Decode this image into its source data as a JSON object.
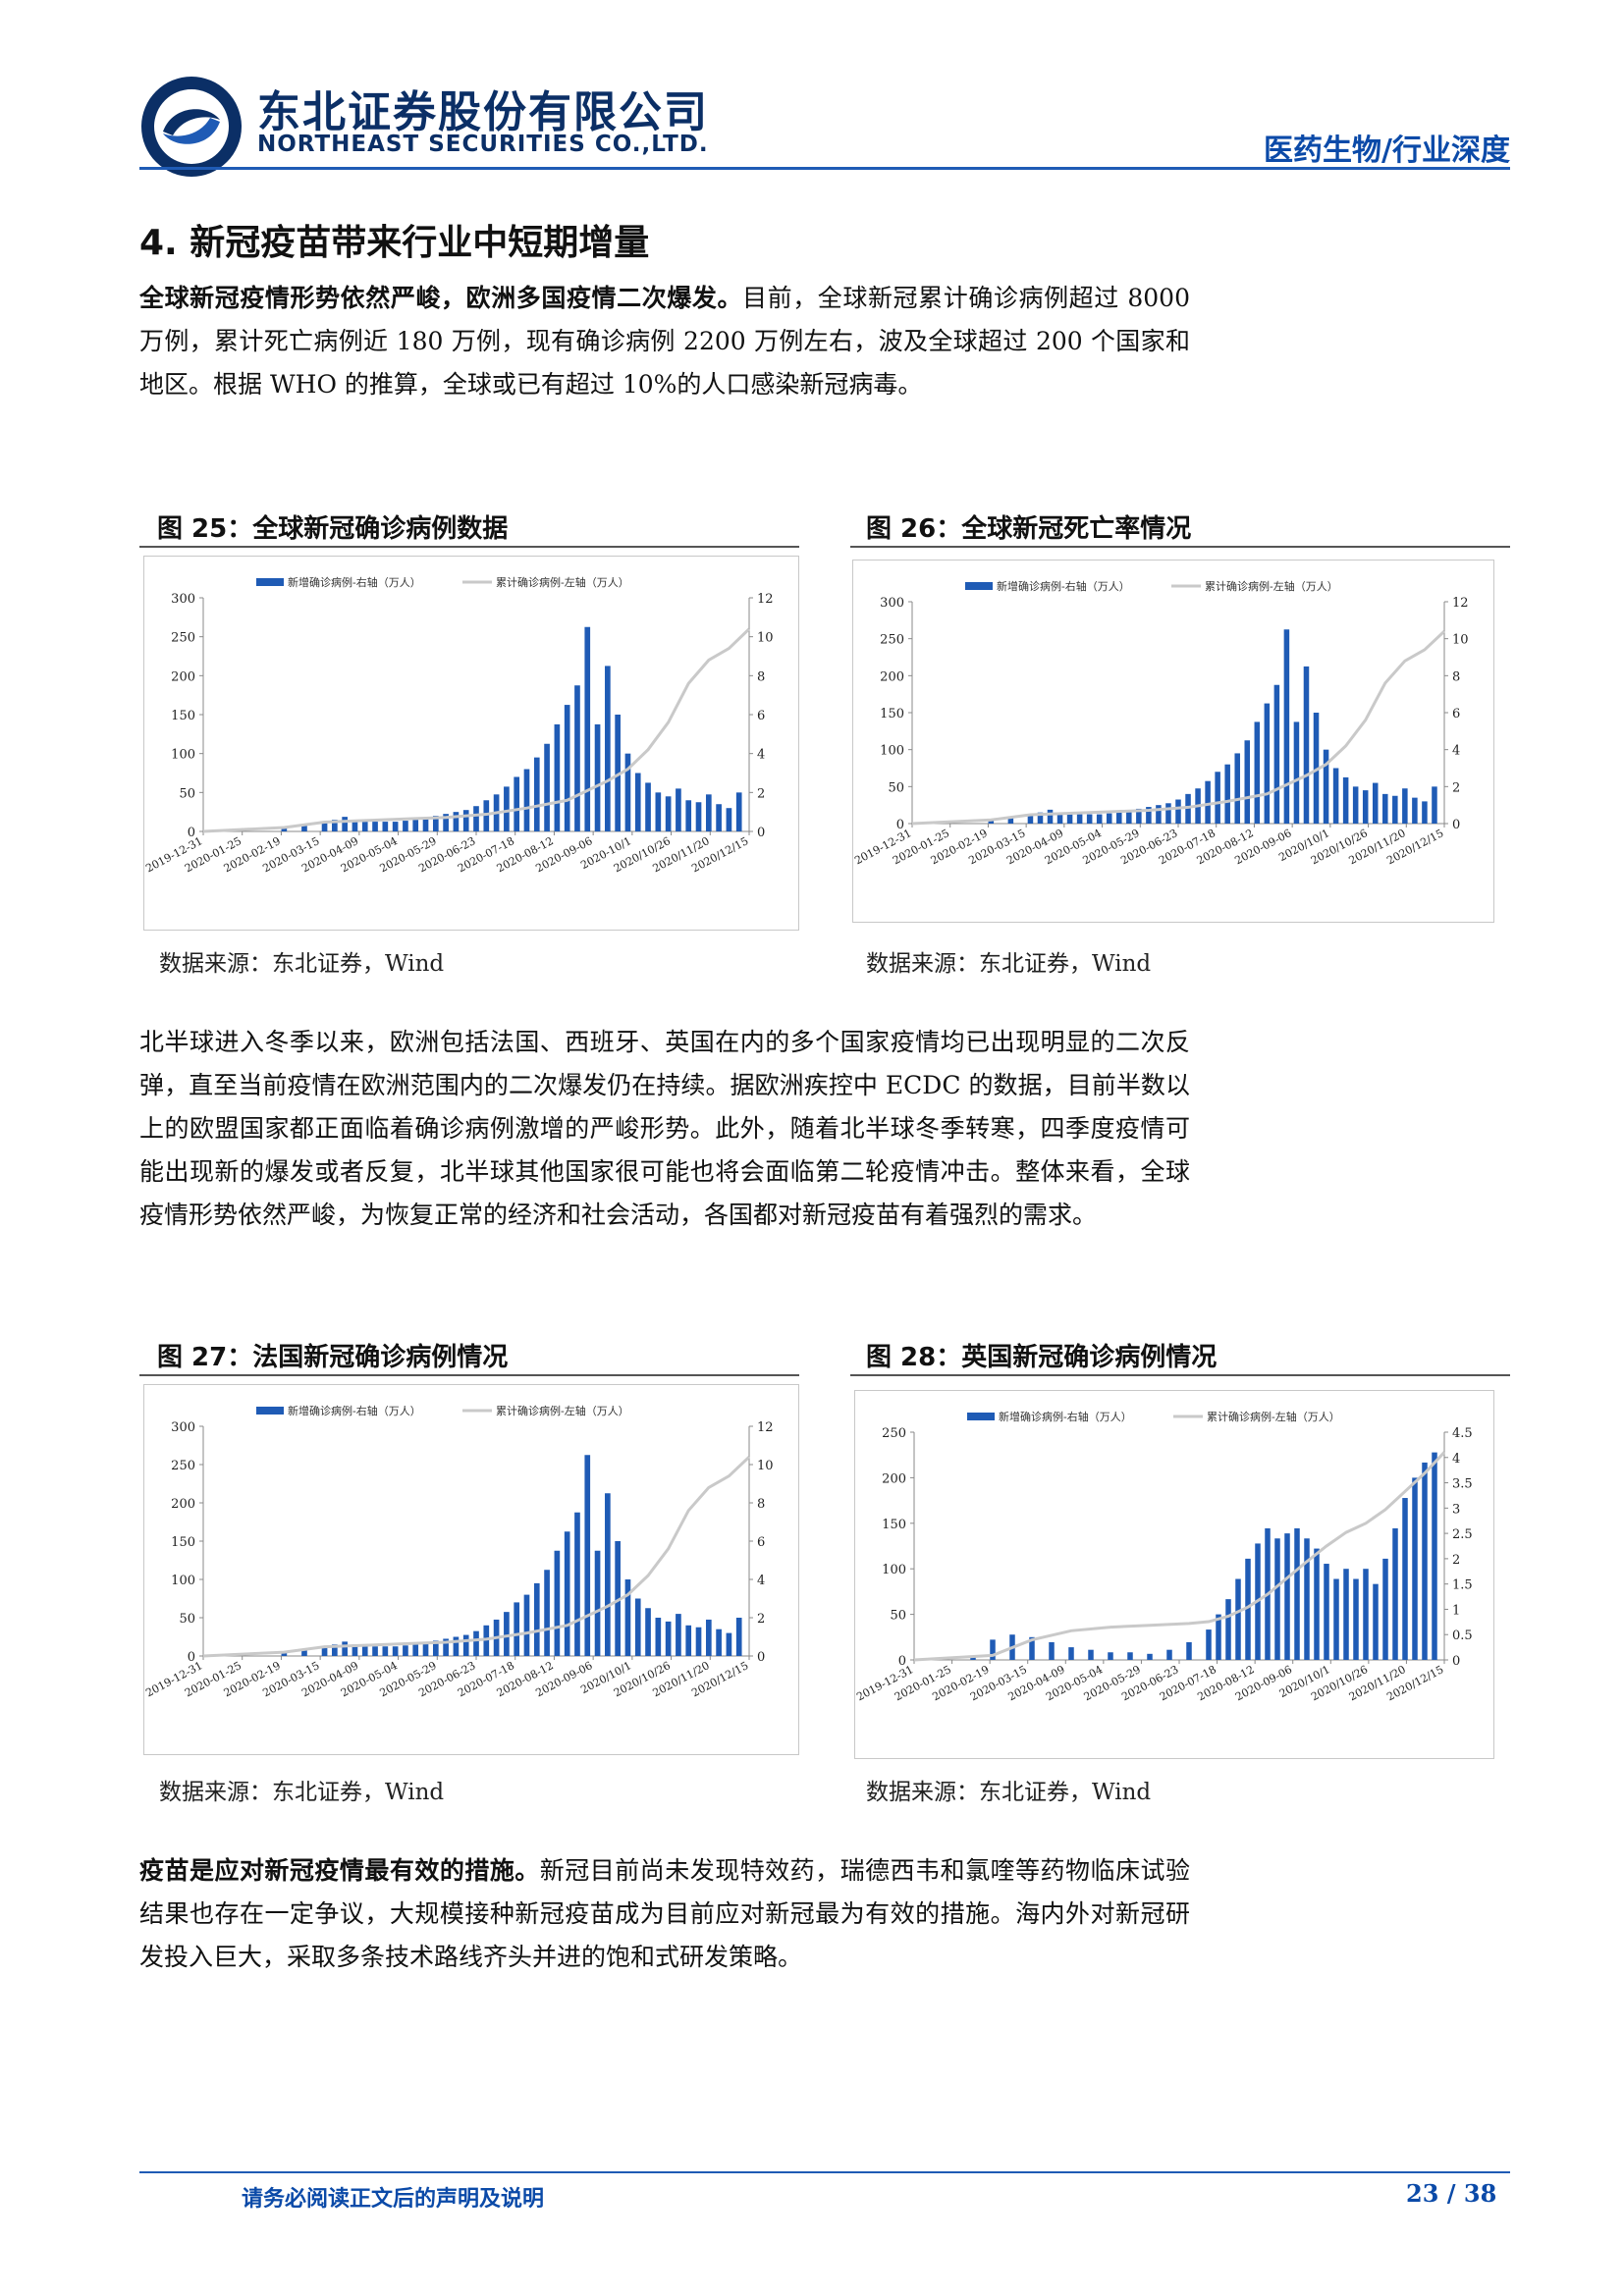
{
  "header": {
    "company_cn": "东北证券股份有限公司",
    "company_en": "NORTHEAST SECURITIES CO.,LTD.",
    "category": "医药生物/行业深度",
    "brand_color": "#0b2f66",
    "accent_color": "#1f5bb5"
  },
  "section": {
    "title": "4. 新冠疫苗带来行业中短期增量"
  },
  "paragraphs": {
    "p1_bold": "全球新冠疫情形势依然严峻，欧洲多国疫情二次爆发。",
    "p1_text": "目前，全球新冠累计确诊病例超过 8000 万例，累计死亡病例近 180 万例，现有确诊病例 2200 万例左右，波及全球超过 200 个国家和地区。根据 WHO 的推算，全球或已有超过 10%的人口感染新冠病毒。",
    "p2_text": "北半球进入冬季以来，欧洲包括法国、西班牙、英国在内的多个国家疫情均已出现明显的二次反弹，直至当前疫情在欧洲范围内的二次爆发仍在持续。据欧洲疾控中 ECDC 的数据，目前半数以上的欧盟国家都正面临着确诊病例激增的严峻形势。此外，随着北半球冬季转寒，四季度疫情可能出现新的爆发或者反复，北半球其他国家很可能也将会面临第二轮疫情冲击。整体来看，全球疫情形势依然严峻，为恢复正常的经济和社会活动，各国都对新冠疫苗有着强烈的需求。",
    "p3_bold": "疫苗是应对新冠疫情最有效的措施。",
    "p3_text": "新冠目前尚未发现特效药，瑞德西韦和氯喹等药物临床试验结果也存在一定争议，大规模接种新冠疫苗成为目前应对新冠最为有效的措施。海内外对新冠研发投入巨大，采取多条技术路线齐头并进的饱和式研发策略。"
  },
  "figures": [
    {
      "title": "图 25：全球新冠确诊病例数据",
      "source": "数据来源：东北证券，Wind"
    },
    {
      "title": "图 26：全球新冠死亡率情况",
      "source": "数据来源：东北证券，Wind"
    },
    {
      "title": "图 27：法国新冠确诊病例情况",
      "source": "数据来源：东北证券，Wind"
    },
    {
      "title": "图 28：英国新冠确诊病例情况",
      "source": "数据来源：东北证券，Wind"
    }
  ],
  "chart_data": [
    {
      "type": "bar",
      "figure": "图 25",
      "legend": [
        "新增确诊病例-右轴（万人）",
        "累计确诊病例-左轴（万人）"
      ],
      "left_axis": {
        "ticks": [
          "0",
          "50",
          "100",
          "150",
          "200",
          "250",
          "300"
        ],
        "lim": [
          0,
          300
        ]
      },
      "right_axis": {
        "ticks": [
          "0",
          "2",
          "4",
          "6",
          "8",
          "10",
          "12"
        ],
        "lim": [
          0,
          12
        ]
      },
      "x_ticks": [
        "2019-12-31",
        "2020-01-25",
        "2020-02-19",
        "2020-03-15",
        "2020-04-09",
        "2020-05-04",
        "2020-05-29",
        "2020-06-23",
        "2020-07-18",
        "2020-08-12",
        "2020-09-06",
        "2020-10/1",
        "2020/10/26",
        "2020/11/20",
        "2020/12/15"
      ],
      "series": [
        {
          "name": "新增确诊病例-右轴（万人）",
          "kind": "bar",
          "color": "#1f5bb5",
          "x": [
            0,
            2,
            4,
            6,
            8,
            10,
            12,
            13,
            14,
            15,
            16,
            17,
            18,
            19,
            20,
            21,
            22,
            23,
            24,
            25,
            26,
            27,
            28,
            29,
            30,
            31,
            32,
            33,
            34,
            35,
            36,
            37,
            38,
            39,
            40,
            41,
            42,
            43,
            44,
            45,
            46,
            47,
            48,
            49,
            50,
            51,
            52,
            53
          ],
          "values": [
            0,
            0,
            0,
            0,
            0.15,
            0.3,
            0.45,
            0.6,
            0.75,
            0.6,
            0.55,
            0.5,
            0.5,
            0.5,
            0.55,
            0.6,
            0.7,
            0.8,
            0.9,
            1.0,
            1.1,
            1.3,
            1.6,
            1.9,
            2.3,
            2.8,
            3.2,
            3.8,
            4.5,
            5.5,
            6.5,
            7.5,
            10.5,
            5.5,
            8.5,
            6.0,
            4.0,
            3.0,
            2.5,
            2.0,
            1.8,
            2.2,
            1.6,
            1.5,
            1.9,
            1.4,
            1.2,
            2.0
          ]
        },
        {
          "name": "累计确诊病例-左轴（万人）",
          "kind": "line",
          "color": "#c9c9c9",
          "x": [
            0,
            8,
            12,
            16,
            20,
            24,
            28,
            32,
            36,
            40,
            42,
            44,
            46,
            48,
            50,
            52,
            54
          ],
          "values": [
            0,
            5,
            12,
            14,
            16,
            18,
            22,
            30,
            40,
            65,
            80,
            105,
            140,
            190,
            220,
            235,
            260
          ]
        }
      ]
    },
    {
      "type": "bar",
      "figure": "图 26",
      "legend": [
        "新增确诊病例-右轴（万人）",
        "累计确诊病例-左轴（万人）"
      ],
      "left_axis": {
        "ticks": [
          "0",
          "50",
          "100",
          "150",
          "200",
          "250",
          "300"
        ],
        "lim": [
          0,
          300
        ]
      },
      "right_axis": {
        "ticks": [
          "0",
          "2",
          "4",
          "6",
          "8",
          "10",
          "12"
        ],
        "lim": [
          0,
          12
        ]
      },
      "x_ticks": [
        "2019-12-31",
        "2020-01-25",
        "2020-02-19",
        "2020-03-15",
        "2020-04-09",
        "2020-05-04",
        "2020-05-29",
        "2020-06-23",
        "2020-07-18",
        "2020-08-12",
        "2020-09-06",
        "2020/10/1",
        "2020/10/26",
        "2020/11/20",
        "2020/12/15"
      ],
      "series": [
        {
          "name": "新增确诊病例-右轴（万人）",
          "kind": "bar",
          "color": "#1f5bb5",
          "x": [
            0,
            2,
            4,
            6,
            8,
            10,
            12,
            13,
            14,
            15,
            16,
            17,
            18,
            19,
            20,
            21,
            22,
            23,
            24,
            25,
            26,
            27,
            28,
            29,
            30,
            31,
            32,
            33,
            34,
            35,
            36,
            37,
            38,
            39,
            40,
            41,
            42,
            43,
            44,
            45,
            46,
            47,
            48,
            49,
            50,
            51,
            52,
            53
          ],
          "values": [
            0,
            0,
            0,
            0,
            0.15,
            0.3,
            0.45,
            0.6,
            0.75,
            0.6,
            0.55,
            0.5,
            0.5,
            0.5,
            0.55,
            0.6,
            0.7,
            0.8,
            0.9,
            1.0,
            1.1,
            1.3,
            1.6,
            1.9,
            2.3,
            2.8,
            3.2,
            3.8,
            4.5,
            5.5,
            6.5,
            7.5,
            10.5,
            5.5,
            8.5,
            6.0,
            4.0,
            3.0,
            2.5,
            2.0,
            1.8,
            2.2,
            1.6,
            1.5,
            1.9,
            1.4,
            1.2,
            2.0
          ]
        },
        {
          "name": "累计确诊病例-左轴（万人）",
          "kind": "line",
          "color": "#c9c9c9",
          "x": [
            0,
            8,
            12,
            16,
            20,
            24,
            28,
            32,
            36,
            40,
            42,
            44,
            46,
            48,
            50,
            52,
            54
          ],
          "values": [
            0,
            5,
            12,
            14,
            16,
            18,
            22,
            30,
            40,
            65,
            80,
            105,
            140,
            190,
            220,
            235,
            260
          ]
        }
      ]
    },
    {
      "type": "bar",
      "figure": "图 27",
      "legend": [
        "新增确诊病例-右轴（万人）",
        "累计确诊病例-左轴（万人）"
      ],
      "left_axis": {
        "ticks": [
          "0",
          "50",
          "100",
          "150",
          "200",
          "250",
          "300"
        ],
        "lim": [
          0,
          300
        ]
      },
      "right_axis": {
        "ticks": [
          "0",
          "2",
          "4",
          "6",
          "8",
          "10",
          "12"
        ],
        "lim": [
          0,
          12
        ]
      },
      "x_ticks": [
        "2019-12-31",
        "2020-01-25",
        "2020-02-19",
        "2020-03-15",
        "2020-04-09",
        "2020-05-04",
        "2020-05-29",
        "2020-06-23",
        "2020-07-18",
        "2020-08-12",
        "2020-09-06",
        "2020/10/1",
        "2020/10/26",
        "2020/11/20",
        "2020/12/15"
      ],
      "series": [
        {
          "name": "新增确诊病例-右轴（万人）",
          "kind": "bar",
          "color": "#1f5bb5",
          "x": [
            0,
            2,
            4,
            6,
            8,
            10,
            12,
            13,
            14,
            15,
            16,
            17,
            18,
            19,
            20,
            21,
            22,
            23,
            24,
            25,
            26,
            27,
            28,
            29,
            30,
            31,
            32,
            33,
            34,
            35,
            36,
            37,
            38,
            39,
            40,
            41,
            42,
            43,
            44,
            45,
            46,
            47,
            48,
            49,
            50,
            51,
            52,
            53
          ],
          "values": [
            0,
            0,
            0,
            0,
            0.15,
            0.3,
            0.45,
            0.6,
            0.75,
            0.6,
            0.55,
            0.5,
            0.5,
            0.5,
            0.55,
            0.6,
            0.7,
            0.8,
            0.9,
            1.0,
            1.1,
            1.3,
            1.6,
            1.9,
            2.3,
            2.8,
            3.2,
            3.8,
            4.5,
            5.5,
            6.5,
            7.5,
            10.5,
            5.5,
            8.5,
            6.0,
            4.0,
            3.0,
            2.5,
            2.0,
            1.8,
            2.2,
            1.6,
            1.5,
            1.9,
            1.4,
            1.2,
            2.0
          ]
        },
        {
          "name": "累计确诊病例-左轴（万人）",
          "kind": "line",
          "color": "#c9c9c9",
          "x": [
            0,
            8,
            12,
            16,
            20,
            24,
            28,
            32,
            36,
            40,
            42,
            44,
            46,
            48,
            50,
            52,
            54
          ],
          "values": [
            0,
            5,
            12,
            14,
            16,
            18,
            22,
            30,
            40,
            65,
            80,
            105,
            140,
            190,
            220,
            235,
            260
          ]
        }
      ]
    },
    {
      "type": "bar",
      "figure": "图 28",
      "legend": [
        "新增确诊病例-右轴（万人）",
        "累计确诊病例-左轴（万人）"
      ],
      "left_axis": {
        "ticks": [
          "0",
          "50",
          "100",
          "150",
          "200",
          "250"
        ],
        "lim": [
          0,
          250
        ]
      },
      "right_axis": {
        "ticks": [
          "0",
          "0.5",
          "1",
          "1.5",
          "2",
          "2.5",
          "3",
          "3.5",
          "4",
          "4.5"
        ],
        "lim": [
          0,
          4.5
        ]
      },
      "x_ticks": [
        "2019-12-31",
        "2020-01-25",
        "2020-02-19",
        "2020-03-15",
        "2020-04-09",
        "2020-05-04",
        "2020-05-29",
        "2020-06-23",
        "2020-07-18",
        "2020-08-12",
        "2020-09-06",
        "2020/10/1",
        "2020/10/26",
        "2020/11/20",
        "2020/12/15"
      ],
      "series": [
        {
          "name": "新增确诊病例-右轴（万人）",
          "kind": "bar",
          "color": "#1f5bb5",
          "x": [
            0,
            6,
            8,
            10,
            12,
            14,
            16,
            18,
            20,
            22,
            24,
            26,
            28,
            30,
            31,
            32,
            33,
            34,
            35,
            36,
            37,
            38,
            39,
            40,
            41,
            42,
            43,
            44,
            45,
            46,
            47,
            48,
            49,
            50,
            51,
            52,
            53
          ],
          "values": [
            0,
            0.05,
            0.4,
            0.5,
            0.45,
            0.35,
            0.25,
            0.2,
            0.15,
            0.15,
            0.12,
            0.2,
            0.35,
            0.6,
            0.9,
            1.2,
            1.6,
            2.0,
            2.3,
            2.6,
            2.4,
            2.5,
            2.6,
            2.4,
            2.2,
            1.9,
            1.6,
            1.8,
            1.6,
            1.8,
            1.5,
            2.0,
            2.6,
            3.2,
            3.6,
            3.9,
            4.1
          ]
        },
        {
          "name": "累计确诊病例-左轴（万人）",
          "kind": "line",
          "color": "#c9c9c9",
          "x": [
            0,
            8,
            12,
            16,
            20,
            24,
            28,
            30,
            32,
            34,
            36,
            38,
            40,
            42,
            44,
            46,
            48,
            50,
            52,
            54
          ],
          "values": [
            0,
            5,
            22,
            32,
            36,
            38,
            40,
            42,
            48,
            58,
            72,
            90,
            108,
            125,
            140,
            150,
            165,
            185,
            205,
            228
          ]
        }
      ]
    }
  ],
  "footer": {
    "note": "请务必阅读正文后的声明及说明",
    "page": "23 / 38"
  }
}
